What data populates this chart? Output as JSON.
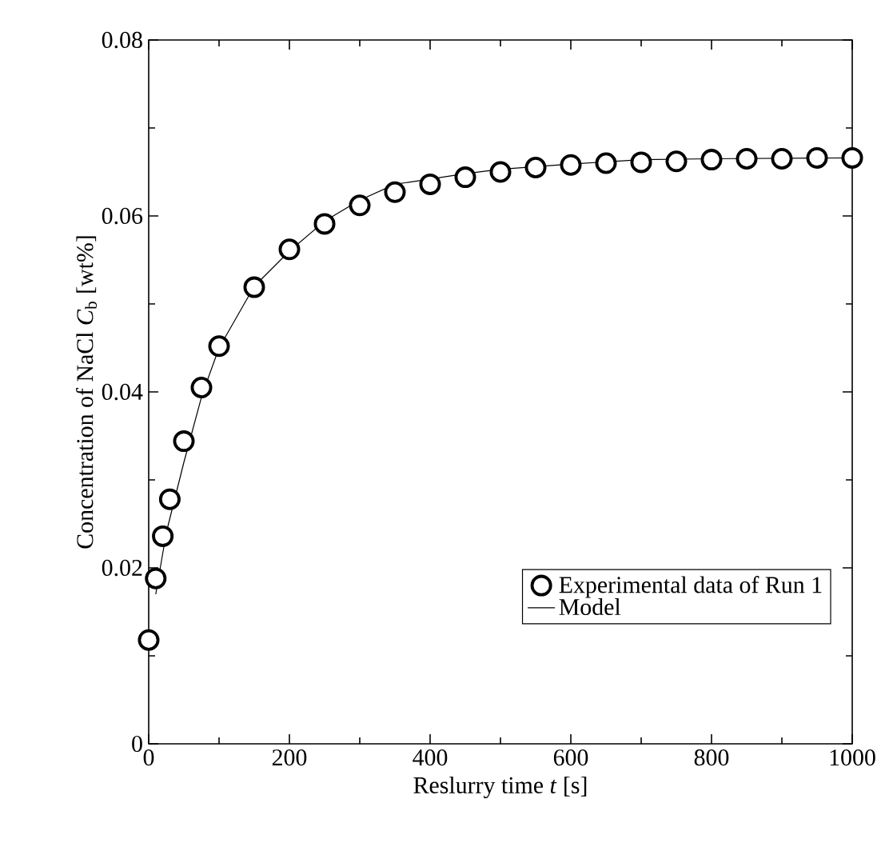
{
  "chart_data": {
    "type": "scatter",
    "xlabel": "Reslurry time *t* [s]",
    "ylabel": "Concentration of NaCl *C*$_{b}$ [wt%]",
    "xlim": [
      0,
      1000
    ],
    "xticks": [
      0,
      200,
      400,
      600,
      800,
      1000
    ],
    "ylim": [
      0,
      0.08
    ],
    "yticks": [
      0,
      0.02,
      0.04,
      0.06,
      0.08
    ],
    "grid": false,
    "legend": "bottom right",
    "series": [
      {
        "name": "Experimental data of Run 1",
        "marker": "circle",
        "color": "#000000",
        "x": [
          0,
          10,
          20,
          30,
          50,
          75,
          100,
          150,
          200,
          250,
          300,
          350,
          400,
          450,
          500,
          550,
          600,
          650,
          700,
          750,
          800,
          850,
          900,
          950,
          1000
        ],
        "values": [
          0.0118,
          0.0188,
          0.0236,
          0.0278,
          0.0344,
          0.0405,
          0.0452,
          0.0519,
          0.0562,
          0.0591,
          0.0612,
          0.0627,
          0.0636,
          0.0644,
          0.065,
          0.0655,
          0.0658,
          0.066,
          0.0661,
          0.0662,
          0.0664,
          0.0665,
          0.0665,
          0.0666,
          0.0666
        ]
      },
      {
        "name": "Model",
        "type": "line",
        "marker": "none",
        "line_style": "solid",
        "color": "#000000",
        "x": [
          10,
          25,
          50,
          76,
          100,
          150,
          200,
          250,
          300,
          350,
          400,
          450,
          500,
          600,
          700,
          800,
          1000
        ],
        "values": [
          0.017,
          0.024,
          0.032,
          0.0397,
          0.045,
          0.052,
          0.056,
          0.0594,
          0.0618,
          0.0636,
          0.0642,
          0.0648,
          0.0653,
          0.0659,
          0.0664,
          0.0665,
          0.0666
        ]
      }
    ]
  }
}
